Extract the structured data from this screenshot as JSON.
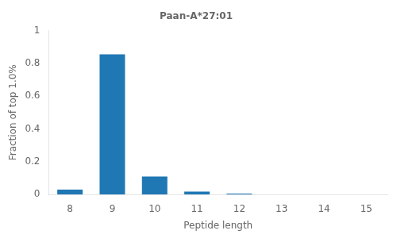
{
  "chart_data": {
    "type": "bar",
    "title": "Paan-A*27:01",
    "xlabel": "Peptide length",
    "ylabel": "Fraction of top 1.0%",
    "categories": [
      8,
      9,
      10,
      11,
      12,
      13,
      14,
      15
    ],
    "values": [
      0.03,
      0.855,
      0.11,
      0.018,
      0.006,
      0.0,
      0.0,
      0.0
    ],
    "color": "#1f77b4",
    "ylim": [
      0.0,
      1.0
    ],
    "yticks": [
      0.0,
      0.2,
      0.4,
      0.6,
      0.8,
      1.0
    ],
    "grid": false
  }
}
